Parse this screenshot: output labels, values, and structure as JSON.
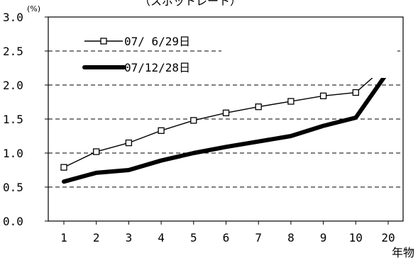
{
  "chart_data": {
    "type": "line",
    "title": "（スポットレート）",
    "y_unit": "(%)",
    "xlabel": "年物",
    "categories": [
      "1",
      "2",
      "3",
      "4",
      "5",
      "6",
      "7",
      "8",
      "9",
      "10",
      "20"
    ],
    "ylim": [
      0.0,
      3.0
    ],
    "y_ticks": [
      "0.0",
      "0.5",
      "1.0",
      "1.5",
      "2.0",
      "2.5",
      "3.0"
    ],
    "grid": "horizontal-dashed",
    "legend_position": "top-left",
    "series": [
      {
        "name": "07/ 6/29日",
        "style": "thin-line-square-markers",
        "color": "#000000",
        "values": [
          0.79,
          1.02,
          1.15,
          1.33,
          1.48,
          1.59,
          1.68,
          1.76,
          1.84,
          1.89,
          2.31
        ]
      },
      {
        "name": "07/12/28日",
        "style": "thick-line",
        "color": "#000000",
        "values": [
          0.58,
          0.71,
          0.75,
          0.89,
          1.0,
          1.09,
          1.17,
          1.25,
          1.4,
          1.52,
          2.2
        ]
      }
    ]
  }
}
